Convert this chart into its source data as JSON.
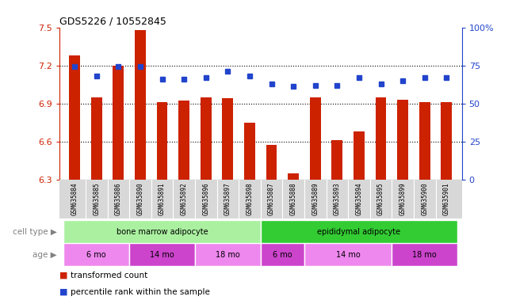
{
  "title": "GDS5226 / 10552845",
  "samples": [
    "GSM635884",
    "GSM635885",
    "GSM635886",
    "GSM635890",
    "GSM635891",
    "GSM635892",
    "GSM635896",
    "GSM635897",
    "GSM635898",
    "GSM635887",
    "GSM635888",
    "GSM635889",
    "GSM635893",
    "GSM635894",
    "GSM635895",
    "GSM635899",
    "GSM635900",
    "GSM635901"
  ],
  "transformed_count": [
    7.28,
    6.95,
    7.2,
    7.48,
    6.91,
    6.92,
    6.95,
    6.94,
    6.75,
    6.57,
    6.35,
    6.95,
    6.61,
    6.68,
    6.95,
    6.93,
    6.91,
    6.91
  ],
  "percentile_rank": [
    74,
    68,
    74,
    74,
    66,
    66,
    67,
    71,
    68,
    63,
    61,
    62,
    62,
    67,
    63,
    65,
    67,
    67
  ],
  "ylim_left": [
    6.3,
    7.5
  ],
  "ylim_right": [
    0,
    100
  ],
  "yticks_left": [
    6.3,
    6.6,
    6.9,
    7.2,
    7.5
  ],
  "yticks_right": [
    0,
    25,
    50,
    75,
    100
  ],
  "ytick_labels_left": [
    "6.3",
    "6.6",
    "6.9",
    "7.2",
    "7.5"
  ],
  "ytick_labels_right": [
    "0",
    "25",
    "50",
    "75",
    "100%"
  ],
  "hlines": [
    6.6,
    6.9,
    7.2
  ],
  "bar_color": "#cc2200",
  "dot_color": "#2244cc",
  "bar_width": 0.5,
  "cell_type_groups": [
    {
      "label": "bone marrow adipocyte",
      "start": 0,
      "end": 9,
      "color": "#aaf0a0"
    },
    {
      "label": "epididymal adipocyte",
      "start": 9,
      "end": 18,
      "color": "#33cc33"
    }
  ],
  "age_groups": [
    {
      "label": "6 mo",
      "start": 0,
      "end": 3,
      "color": "#ee88ee"
    },
    {
      "label": "14 mo",
      "start": 3,
      "end": 6,
      "color": "#cc44cc"
    },
    {
      "label": "18 mo",
      "start": 6,
      "end": 9,
      "color": "#ee88ee"
    },
    {
      "label": "6 mo",
      "start": 9,
      "end": 11,
      "color": "#cc44cc"
    },
    {
      "label": "14 mo",
      "start": 11,
      "end": 15,
      "color": "#ee88ee"
    },
    {
      "label": "18 mo",
      "start": 15,
      "end": 18,
      "color": "#cc44cc"
    }
  ],
  "legend_items": [
    {
      "label": "transformed count",
      "color": "#cc2200"
    },
    {
      "label": "percentile rank within the sample",
      "color": "#2244cc"
    }
  ],
  "cell_type_label": "cell type",
  "age_label": "age",
  "background_color": "#ffffff",
  "axis_color_left": "#cc2200",
  "axis_color_right": "#2244cc",
  "xtick_bg": "#d8d8d8"
}
